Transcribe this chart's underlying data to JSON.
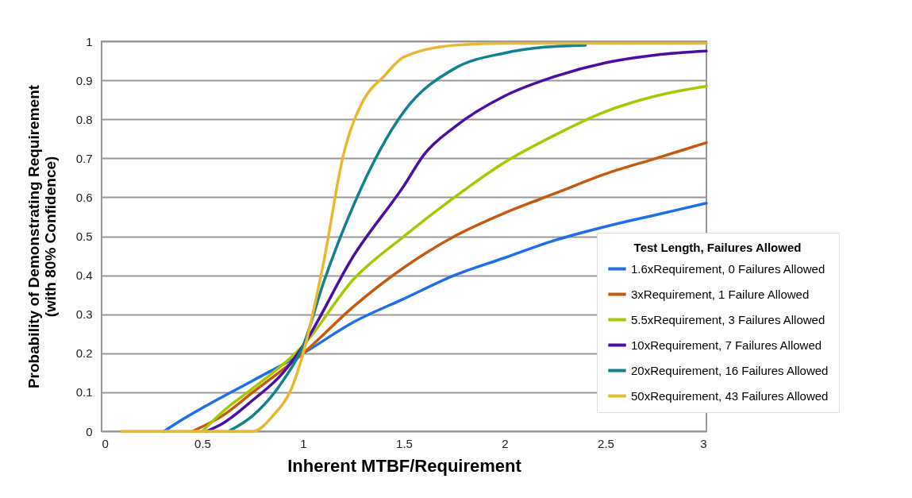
{
  "chart_data": {
    "type": "line",
    "xlabel": "Inherent MTBF/Requirement",
    "ylabel": "Probability of Demonstrating Requirement\n(with 80% Confidence)",
    "legend_title": "Test Length, Failures Allowed",
    "xlim": [
      0,
      3
    ],
    "xticks": [
      0,
      0.5,
      1,
      1.5,
      2,
      2.5,
      3
    ],
    "ylim": [
      0,
      1
    ],
    "yticks": [
      0,
      0.1,
      0.2,
      0.3,
      0.4,
      0.5,
      0.6,
      0.7,
      0.8,
      0.9,
      1
    ],
    "grid": "y",
    "legend": "bottom right",
    "marker": "none",
    "line_style": "solid",
    "series": [
      {
        "name": "1.6xRequirement, 0 Failures Allowed",
        "color": "#1f6fe8",
        "x": [
          0.31,
          0.4,
          0.5,
          0.75,
          1,
          1.25,
          1.5,
          1.75,
          2,
          2.25,
          2.5,
          2.75,
          3
        ],
        "values": [
          0.0,
          0.03,
          0.06,
          0.13,
          0.2,
          0.28,
          0.34,
          0.4,
          0.445,
          0.49,
          0.525,
          0.555,
          0.585
        ]
      },
      {
        "name": "3xRequirement, 1 Failure Allowed",
        "color": "#c55a11",
        "x": [
          0.45,
          0.6,
          0.75,
          1,
          1.25,
          1.5,
          1.75,
          2,
          2.25,
          2.5,
          2.75,
          3
        ],
        "values": [
          0.0,
          0.04,
          0.1,
          0.2,
          0.32,
          0.42,
          0.5,
          0.56,
          0.61,
          0.66,
          0.7,
          0.74
        ]
      },
      {
        "name": "5.5xRequirement, 3 Failures Allowed",
        "color": "#a8c800",
        "x": [
          0.5,
          0.6,
          0.75,
          1,
          1.25,
          1.5,
          1.75,
          2,
          2.25,
          2.5,
          2.75,
          3
        ],
        "values": [
          0.0,
          0.05,
          0.11,
          0.22,
          0.39,
          0.5,
          0.6,
          0.69,
          0.76,
          0.82,
          0.86,
          0.885
        ]
      },
      {
        "name": "10xRequirement, 7 Failures Allowed",
        "color": "#4b0fa6",
        "x": [
          0.52,
          0.6,
          0.75,
          0.9,
          1,
          1.25,
          1.5,
          1.6,
          1.75,
          2,
          2.25,
          2.5,
          2.75,
          3
        ],
        "values": [
          0.0,
          0.02,
          0.08,
          0.15,
          0.22,
          0.45,
          0.63,
          0.71,
          0.78,
          0.86,
          0.91,
          0.945,
          0.965,
          0.975
        ]
      },
      {
        "name": "20xRequirement, 16 Failures Allowed",
        "color": "#13828f",
        "x": [
          0.63,
          0.75,
          0.9,
          1,
          1.1,
          1.25,
          1.5,
          1.75,
          2,
          2.2,
          2.4
        ],
        "values": [
          0.0,
          0.04,
          0.13,
          0.22,
          0.38,
          0.58,
          0.82,
          0.93,
          0.97,
          0.985,
          0.99
        ]
      },
      {
        "name": "50xRequirement, 43 Failures Allowed",
        "color": "#e8b830",
        "x": [
          0.1,
          0.75,
          0.85,
          0.95,
          1,
          1.1,
          1.2,
          1.3,
          1.4,
          1.5,
          1.75,
          2,
          3
        ],
        "values": [
          0.0,
          0.0,
          0.04,
          0.12,
          0.2,
          0.43,
          0.71,
          0.85,
          0.91,
          0.96,
          0.99,
          0.995,
          0.995
        ]
      }
    ]
  }
}
